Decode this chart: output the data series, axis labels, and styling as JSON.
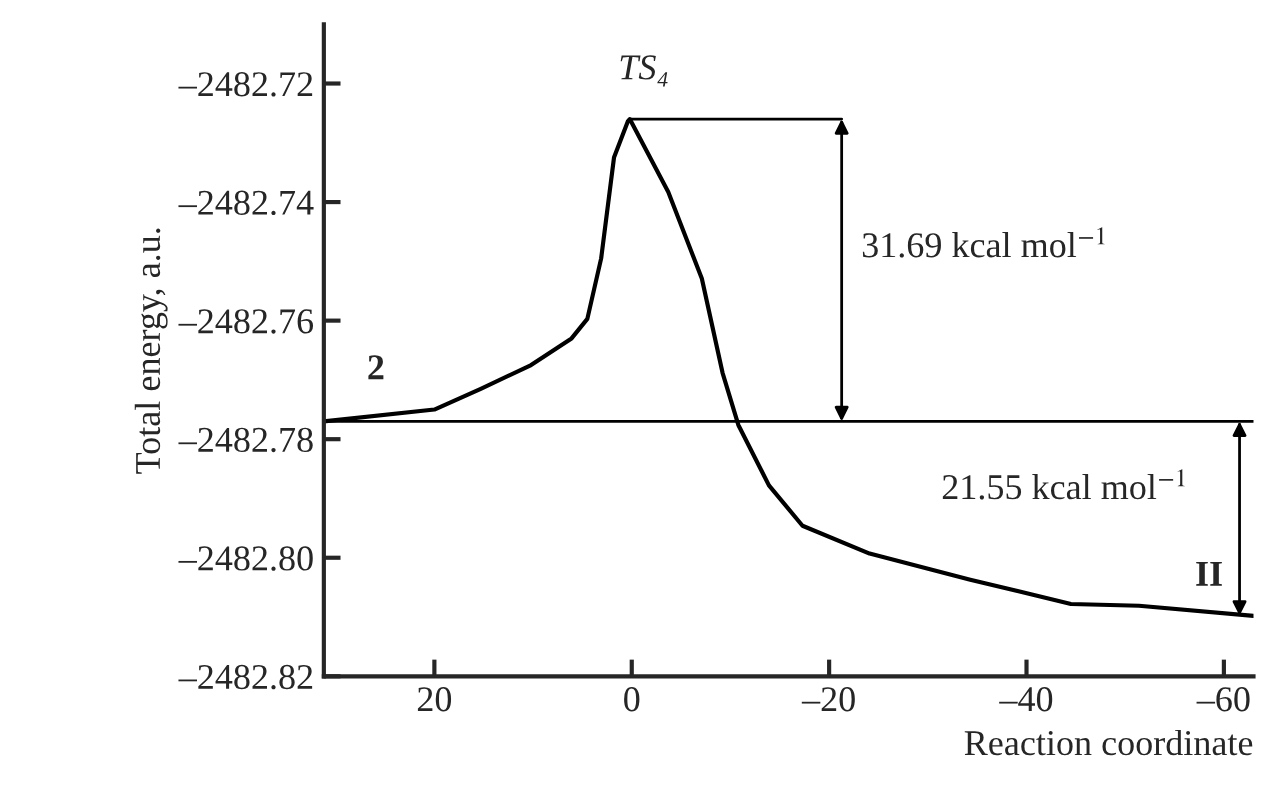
{
  "chart_data": {
    "type": "line",
    "xlabel": "Reaction coordinate",
    "ylabel": "Total energy, a.u.",
    "x": [
      31.2,
      20,
      15.3,
      10.2,
      6.1,
      4.5,
      3.1,
      1.8,
      0.4,
      0.2,
      -3.7,
      -7.1,
      -9.2,
      -10.8,
      -13.9,
      -17.3,
      -24.1,
      -34.3,
      -44.5,
      -51.4,
      -63
    ],
    "series": [
      {
        "color": "#000000",
        "values": [
          -2482.777,
          -2482.775,
          -2482.7715,
          -2482.7675,
          -2482.763,
          -2482.7597,
          -2482.7495,
          -2482.7325,
          -2482.7264,
          -2482.726,
          -2482.7383,
          -2482.7529,
          -2482.7688,
          -2482.7776,
          -2482.7878,
          -2482.7946,
          -2482.7993,
          -2482.8037,
          -2482.8078,
          -2482.8081,
          -2482.8098
        ]
      }
    ],
    "xlim": [
      31.2,
      -63
    ],
    "ylim": [
      -2482.82,
      -2482.71
    ],
    "xticks": [
      {
        "value": 20,
        "label": "20"
      },
      {
        "value": 0,
        "label": "0"
      },
      {
        "value": -20,
        "label": "–20"
      },
      {
        "value": -40,
        "label": "–40"
      },
      {
        "value": -60,
        "label": "–60"
      }
    ],
    "yticks": [
      {
        "value": -2482.82,
        "label": "–2482.82"
      },
      {
        "value": -2482.8,
        "label": "–2482.80"
      },
      {
        "value": -2482.78,
        "label": "–2482.78"
      },
      {
        "value": -2482.76,
        "label": "–2482.76"
      },
      {
        "value": -2482.74,
        "label": "–2482.74"
      },
      {
        "value": -2482.72,
        "label": "–2482.72"
      }
    ],
    "ref_lines": [
      {
        "axis": "y",
        "value": -2482.777,
        "color": "#000000"
      }
    ],
    "annotations": [
      "2",
      "TS₄",
      {
        "text": "II",
        "x": -63,
        "y": -2482.8098
      },
      "31.69 kcal mol$^{−1}$",
      "21.55 kcal mol$^{−1}$"
    ],
    "grid": false,
    "marker": "none",
    "line_style": "solid"
  }
}
